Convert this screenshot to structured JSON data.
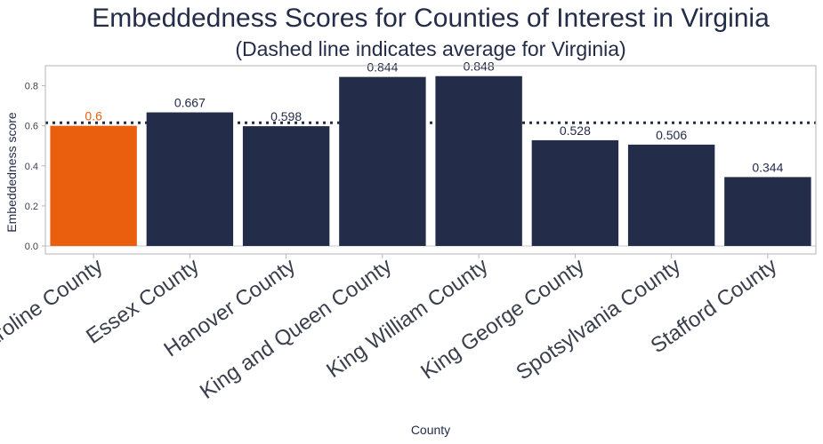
{
  "colors": {
    "bar": "#232c49",
    "highlight": "#e95f0e",
    "text": "#232c49",
    "average_line": "#232c49",
    "panel_border": "#b5b5b5",
    "zero_line": "#c9c9c9"
  },
  "chart_data": {
    "type": "bar",
    "title": "Embeddedness Scores for Counties of Interest in Virginia",
    "subtitle": "(Dashed line indicates average for Virginia)",
    "xlabel": "County",
    "ylabel": "Embeddedness score",
    "categories": [
      "Caroline County",
      "Essex County",
      "Hanover County",
      "King and Queen County",
      "King William County",
      "King George County",
      "Spotsylvania County",
      "Stafford County"
    ],
    "values": [
      0.6,
      0.667,
      0.598,
      0.844,
      0.848,
      0.528,
      0.506,
      0.344
    ],
    "value_labels": [
      "0.6",
      "0.667",
      "0.598",
      "0.844",
      "0.848",
      "0.528",
      "0.506",
      "0.344"
    ],
    "highlight_category": "Caroline County",
    "average": 0.615,
    "ylim": [
      -0.04,
      0.9
    ],
    "yticks": [
      0.0,
      0.2,
      0.4,
      0.6,
      0.8
    ],
    "ytick_labels": [
      "0.0",
      "0.2",
      "0.4",
      "0.6",
      "0.8"
    ],
    "grid": false,
    "legend": "none"
  }
}
